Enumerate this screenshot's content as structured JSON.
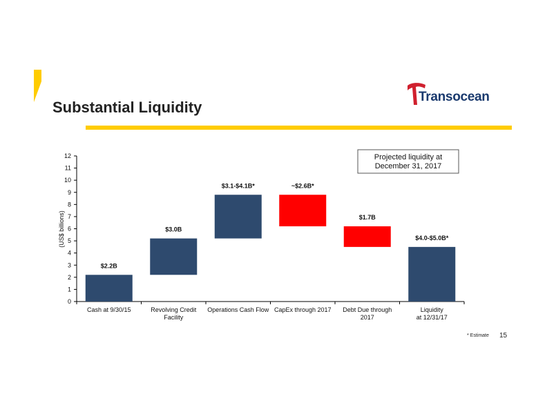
{
  "slide": {
    "title": "Substantial Liquidity",
    "logo_text": "Transocean",
    "footnote": "* Estimate",
    "page_number": "15"
  },
  "colors": {
    "accent": "#ffcc00",
    "bar_increase": "#2e4a6e",
    "bar_decrease": "#ff0000",
    "logo_red": "#d0202e",
    "logo_blue": "#1a3a6e"
  },
  "chart_data": {
    "type": "bar",
    "subtype": "waterfall",
    "title": "",
    "xlabel": "",
    "ylabel": "(US$ billions)",
    "ylim": [
      0,
      12
    ],
    "yticks": [
      0,
      1,
      2,
      3,
      4,
      5,
      6,
      7,
      8,
      9,
      10,
      11,
      12
    ],
    "grid": false,
    "callout": "Projected liquidity at December 31, 2017",
    "bars": [
      {
        "category": "Cash at 9/30/15",
        "bottom": 0,
        "top": 2.2,
        "label": "$2.2B",
        "kind": "increase"
      },
      {
        "category": "Revolving Credit Facility",
        "bottom": 2.2,
        "top": 5.2,
        "label": "$3.0B",
        "kind": "increase"
      },
      {
        "category": "Operations Cash Flow",
        "bottom": 5.2,
        "top": 8.8,
        "label": "$3.1-$4.1B*",
        "kind": "increase"
      },
      {
        "category": "CapEx through 2017",
        "bottom": 6.2,
        "top": 8.8,
        "label": "~$2.6B*",
        "kind": "decrease"
      },
      {
        "category": "Debt Due through 2017",
        "bottom": 4.5,
        "top": 6.2,
        "label": "$1.7B",
        "kind": "decrease"
      },
      {
        "category": "Liquidity at 12/31/17",
        "bottom": 0,
        "top": 4.5,
        "label": "$4.0-$5.0B*",
        "kind": "total"
      }
    ]
  }
}
